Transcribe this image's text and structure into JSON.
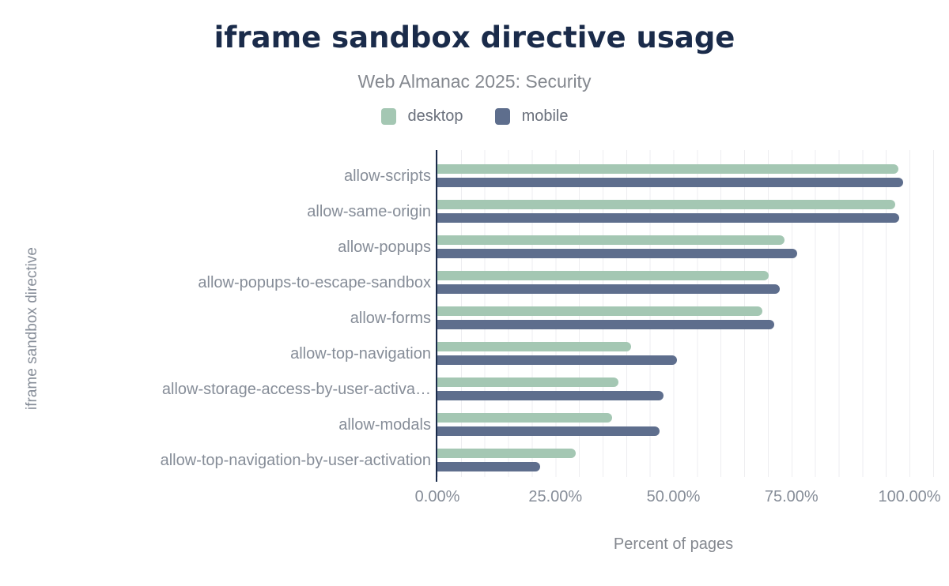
{
  "header": {
    "title": "iframe sandbox directive usage",
    "subtitle": "Web Almanac 2025: Security"
  },
  "legend": {
    "items": [
      {
        "label": "desktop",
        "color": "#a4c7b3"
      },
      {
        "label": "mobile",
        "color": "#5e6e8d"
      }
    ]
  },
  "axes": {
    "x_label": "Percent of pages",
    "y_label": "iframe sandbox directive",
    "x_ticks": [
      "0.00%",
      "25.00%",
      "50.00%",
      "75.00%",
      "100.00%"
    ]
  },
  "chart_data": {
    "type": "bar",
    "orientation": "horizontal",
    "title": "iframe sandbox directive usage",
    "subtitle": "Web Almanac 2025: Security",
    "xlabel": "Percent of pages",
    "ylabel": "iframe sandbox directive",
    "unit": "%",
    "xlim": [
      0,
      105
    ],
    "x_tick_values": [
      0,
      25,
      50,
      75,
      100
    ],
    "x_tick_labels": [
      "0.00%",
      "25.00%",
      "50.00%",
      "75.00%",
      "100.00%"
    ],
    "grid": "vertical minor gridlines every 5%",
    "legend_position": "top",
    "categories": [
      "allow-scripts",
      "allow-same-origin",
      "allow-popups",
      "allow-popups-to-escape-sandbox",
      "allow-forms",
      "allow-top-navigation",
      "allow-storage-access-by-user-activation",
      "allow-modals",
      "allow-top-navigation-by-user-activation"
    ],
    "category_display_labels": [
      "allow-scripts",
      "allow-same-origin",
      "allow-popups",
      "allow-popups-to-escape-sandbox",
      "allow-forms",
      "allow-top-navigation",
      "allow-storage-access-by-user-activa…",
      "allow-modals",
      "allow-top-navigation-by-user-activation"
    ],
    "series": [
      {
        "name": "desktop",
        "color": "#a4c7b3",
        "values": [
          97.7,
          97.0,
          73.5,
          70.2,
          68.8,
          41.0,
          38.4,
          37.0,
          29.3
        ]
      },
      {
        "name": "mobile",
        "color": "#5e6e8d",
        "values": [
          98.7,
          97.8,
          76.2,
          72.6,
          71.3,
          50.7,
          47.9,
          47.0,
          21.8
        ]
      }
    ]
  },
  "style": {
    "title_color": "#1a2b4a",
    "subtitle_color": "#84888f",
    "axis_text_color": "#868d98",
    "legend_text_color": "#6a707c",
    "axis_line_color": "#1a2b4a",
    "gridline_color": "#ededf0",
    "background": "#ffffff"
  }
}
